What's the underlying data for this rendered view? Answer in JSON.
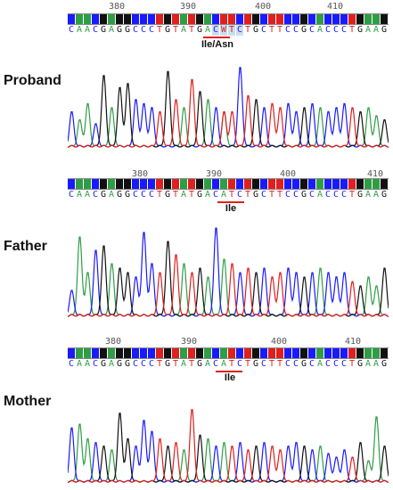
{
  "colors": {
    "A": "#2e9e45",
    "C": "#1a1aff",
    "G": "#111111",
    "T": "#e01f1f",
    "W": "#e01f1f",
    "N": "#999999"
  },
  "panels": [
    {
      "label": "Proband",
      "ticks": [
        "380",
        "390",
        "400",
        "410"
      ],
      "sequence": "CAACGAGGCCCTGTATGACWTCTGCTTCCGCACCCTGAAG",
      "codon_label": "Ile/Asn"
    },
    {
      "label": "Father",
      "ticks": [
        "380",
        "390",
        "400",
        "410"
      ],
      "sequence": "CAACGAGGCCCTGTATGACATCTGCTTCCGCACCCTGAAG",
      "codon_label": "Ile"
    },
    {
      "label": "Mother",
      "ticks": [
        "380",
        "390",
        "400",
        "410"
      ],
      "sequence": "CAACGAGGCCCTGTATGACATCTGCTTCCGCACCCTGAAG",
      "codon_label": "Ile"
    }
  ]
}
